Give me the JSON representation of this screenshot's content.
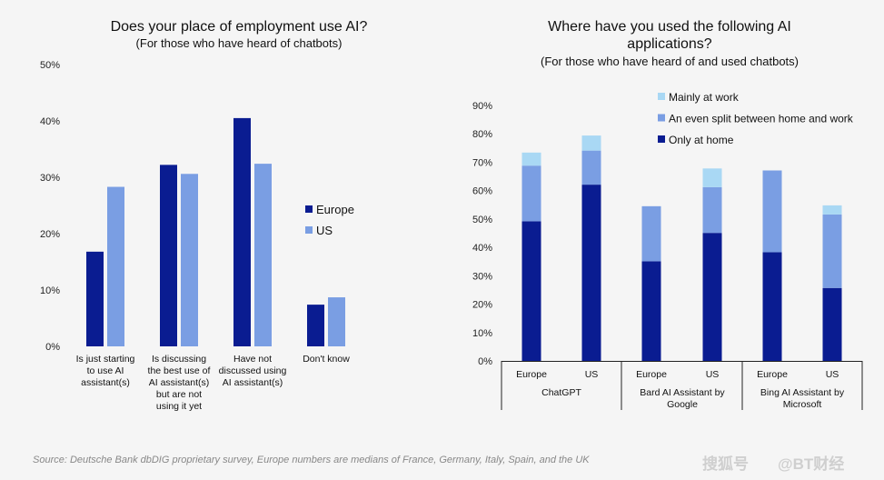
{
  "source_note": "Source: Deutsche Bank dbDIG proprietary survey, Europe numbers are medians of France, Germany, Italy, Spain, and the UK",
  "watermark": "@BT财经",
  "watermark_logo": "搜狐号",
  "colors": {
    "europe": "#0a1c91",
    "us": "#7a9ee3",
    "only_home": "#0a1c91",
    "even_split": "#7a9ee3",
    "mainly_work": "#a9d8f4"
  },
  "chart_data": [
    {
      "type": "bar",
      "title": "Does your place of employment use AI?",
      "subtitle": "(For those who have heard of chatbots)",
      "xlabel": "",
      "ylabel": "",
      "ylim": [
        0,
        50
      ],
      "yticks": [
        "0%",
        "10%",
        "20%",
        "30%",
        "40%",
        "50%"
      ],
      "grid": false,
      "legend_position": "right",
      "categories": [
        [
          "Is just starting",
          "to use AI",
          "assistant(s)"
        ],
        [
          "Is discussing",
          "the best use of",
          "AI assistant(s)",
          "but are not",
          "using it yet"
        ],
        [
          "Have not",
          "discussed using",
          "AI assistant(s)"
        ],
        [
          "Don't know"
        ]
      ],
      "series": [
        {
          "name": "Europe",
          "values": [
            16.8,
            32.2,
            40.5,
            7.4
          ]
        },
        {
          "name": "US",
          "values": [
            28.3,
            30.6,
            32.4,
            8.7
          ]
        }
      ]
    },
    {
      "type": "bar",
      "stacked": true,
      "title": "Where have you used the following AI applications?",
      "title_lines": [
        "Where have you used the following AI",
        "applications?"
      ],
      "subtitle": "(For those who have heard of and used chatbots)",
      "xlabel": "",
      "ylabel": "",
      "ylim": [
        0,
        90
      ],
      "yticks": [
        "0%",
        "10%",
        "20%",
        "30%",
        "40%",
        "50%",
        "60%",
        "70%",
        "80%",
        "90%"
      ],
      "grid": false,
      "legend_position": "top-right",
      "categories": [
        "Europe",
        "US",
        "Europe",
        "US",
        "Europe",
        "US"
      ],
      "groups": [
        {
          "label": [
            "ChatGPT"
          ]
        },
        {
          "label": [
            "Bard AI Assistant by",
            "Google"
          ]
        },
        {
          "label": [
            "Bing AI Assistant by",
            "Microsoft"
          ]
        }
      ],
      "series": [
        {
          "name": "Only at home",
          "values": [
            49.2,
            62.1,
            35.1,
            45.1,
            38.3,
            25.7
          ]
        },
        {
          "name": "An even split between home and work",
          "values": [
            19.6,
            12.0,
            19.4,
            16.1,
            28.8,
            25.9
          ]
        },
        {
          "name": "Mainly at work",
          "values": [
            4.6,
            5.3,
            0.0,
            6.6,
            0.0,
            3.2
          ]
        }
      ],
      "legend_order": [
        "Mainly at work",
        "An even split between home and work",
        "Only at home"
      ]
    }
  ]
}
